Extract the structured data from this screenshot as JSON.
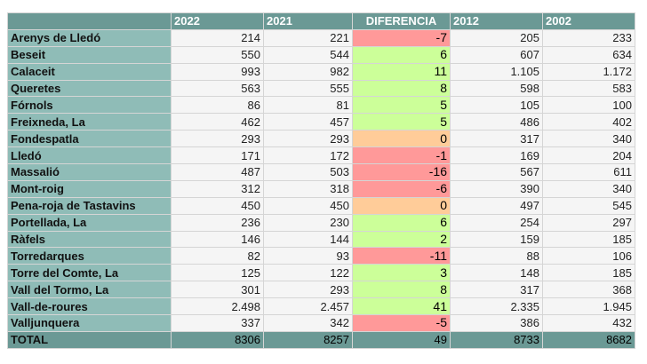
{
  "headers": [
    "",
    "2022",
    "2021",
    "DIFERENCIA",
    "2012",
    "2002"
  ],
  "rows": [
    {
      "name": "Arenys de Lledó",
      "y2022": "214",
      "y2021": "221",
      "diff": "-7",
      "y2012": "205",
      "y2002": "233",
      "status": "neg"
    },
    {
      "name": "Beseit",
      "y2022": "550",
      "y2021": "544",
      "diff": "6",
      "y2012": "607",
      "y2002": "634",
      "status": "pos"
    },
    {
      "name": "Calaceit",
      "y2022": "993",
      "y2021": "982",
      "diff": "11",
      "y2012": "1.105",
      "y2002": "1.172",
      "status": "pos"
    },
    {
      "name": "Queretes",
      "y2022": "563",
      "y2021": "555",
      "diff": "8",
      "y2012": "598",
      "y2002": "583",
      "status": "pos"
    },
    {
      "name": "Fórnols",
      "y2022": "86",
      "y2021": "81",
      "diff": "5",
      "y2012": "105",
      "y2002": "100",
      "status": "pos"
    },
    {
      "name": "Freixneda, La",
      "y2022": "462",
      "y2021": "457",
      "diff": "5",
      "y2012": "486",
      "y2002": "402",
      "status": "pos"
    },
    {
      "name": "Fondespatla",
      "y2022": "293",
      "y2021": "293",
      "diff": "0",
      "y2012": "317",
      "y2002": "340",
      "status": "zero"
    },
    {
      "name": "Lledó",
      "y2022": "171",
      "y2021": "172",
      "diff": "-1",
      "y2012": "169",
      "y2002": "204",
      "status": "neg"
    },
    {
      "name": "Massalió",
      "y2022": "487",
      "y2021": "503",
      "diff": "-16",
      "y2012": "567",
      "y2002": "611",
      "status": "neg"
    },
    {
      "name": "Mont-roig",
      "y2022": "312",
      "y2021": "318",
      "diff": "-6",
      "y2012": "390",
      "y2002": "340",
      "status": "neg"
    },
    {
      "name": "Pena-roja de Tastavins",
      "y2022": "450",
      "y2021": "450",
      "diff": "0",
      "y2012": "497",
      "y2002": "545",
      "status": "zero"
    },
    {
      "name": "Portellada, La",
      "y2022": "236",
      "y2021": "230",
      "diff": "6",
      "y2012": "254",
      "y2002": "297",
      "status": "pos"
    },
    {
      "name": "Ràfels",
      "y2022": "146",
      "y2021": "144",
      "diff": "2",
      "y2012": "159",
      "y2002": "185",
      "status": "pos"
    },
    {
      "name": "Torredarques",
      "y2022": "82",
      "y2021": "93",
      "diff": "-11",
      "y2012": "88",
      "y2002": "106",
      "status": "neg"
    },
    {
      "name": "Torre del Comte, La",
      "y2022": "125",
      "y2021": "122",
      "diff": "3",
      "y2012": "148",
      "y2002": "185",
      "status": "pos"
    },
    {
      "name": "Vall del Tormo, La",
      "y2022": "301",
      "y2021": "293",
      "diff": "8",
      "y2012": "317",
      "y2002": "368",
      "status": "pos"
    },
    {
      "name": "Vall-de-roures",
      "y2022": "2.498",
      "y2021": "2.457",
      "diff": "41",
      "y2012": "2.335",
      "y2002": "1.945",
      "status": "pos"
    },
    {
      "name": "Valljunquera",
      "y2022": "337",
      "y2021": "342",
      "diff": "-5",
      "y2012": "386",
      "y2002": "432",
      "status": "neg"
    }
  ],
  "total": {
    "name": "TOTAL",
    "y2022": "8306",
    "y2021": "8257",
    "diff": "49",
    "y2012": "8733",
    "y2002": "8682"
  },
  "colors": {
    "header": "#6b9995",
    "name_cell": "#8fbcb7",
    "positive": "#ccff99",
    "negative": "#ff9999",
    "zero": "#ffcc99"
  }
}
